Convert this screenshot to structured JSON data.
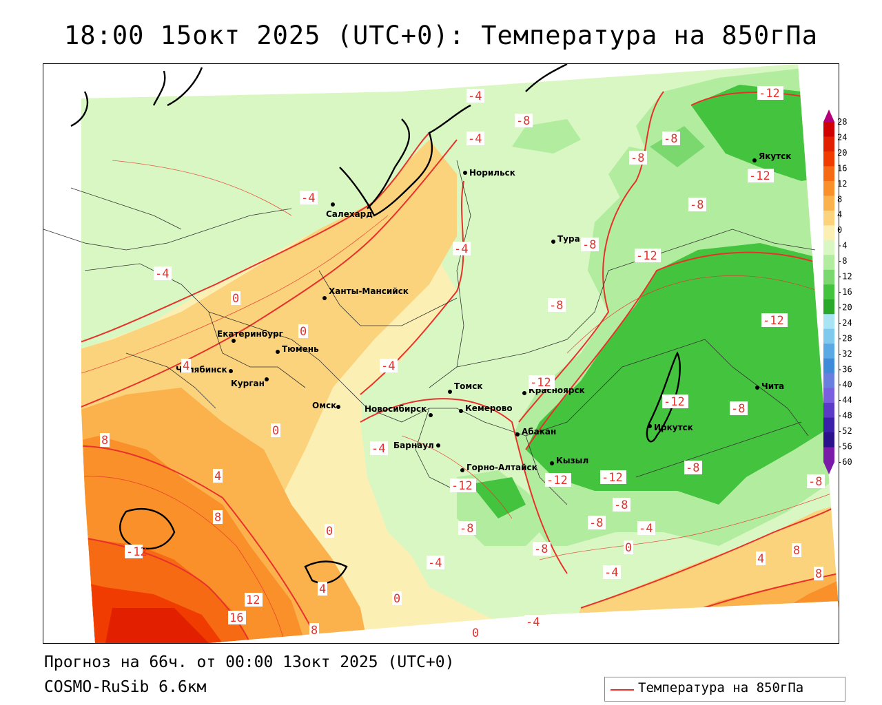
{
  "title": "18:00 15окт 2025 (UTC+0): Температура на 850гПа",
  "footer": {
    "forecast": "Прогноз на 66ч. от 00:00 13окт 2025 (UTC+0)",
    "model": "COSMO-RuSib 6.6км"
  },
  "legend": {
    "label": "Температура на 850гПа",
    "line_color": "#e8312a"
  },
  "colorbar": {
    "ticks": [
      "28",
      "24",
      "20",
      "16",
      "12",
      "8",
      "4",
      "0",
      "-4",
      "-8",
      "-12",
      "-16",
      "-20",
      "-24",
      "-28",
      "-32",
      "-36",
      "-40",
      "-44",
      "-48",
      "-52",
      "-56",
      "-60"
    ],
    "colors": [
      "#b3007a",
      "#d10000",
      "#e22000",
      "#f03c00",
      "#f76a14",
      "#f9902a",
      "#fbb24d",
      "#fad37c",
      "#fcefb3",
      "#d8f7c2",
      "#b2ec9f",
      "#7ad86f",
      "#44c33e",
      "#2aa82a",
      "#a8e4f4",
      "#7fc8ee",
      "#5aa8e4",
      "#3f8ad9",
      "#6a7ee0",
      "#7a5ee0",
      "#5c3ac8",
      "#3a20a8",
      "#2a108a",
      "#7a1aa8"
    ]
  },
  "cities": [
    {
      "name": "Салехард"
    },
    {
      "name": "Норильск"
    },
    {
      "name": "Якутск"
    },
    {
      "name": "Тура"
    },
    {
      "name": "Ханты-Мансийск"
    },
    {
      "name": "Екатеринбург"
    },
    {
      "name": "Тюмень"
    },
    {
      "name": "Челябинск"
    },
    {
      "name": "Курган"
    },
    {
      "name": "Омск"
    },
    {
      "name": "Томск"
    },
    {
      "name": "Новосибирск"
    },
    {
      "name": "Кемерово"
    },
    {
      "name": "Красноярск"
    },
    {
      "name": "Барнаул"
    },
    {
      "name": "Абакан"
    },
    {
      "name": "Горно-Алтайск"
    },
    {
      "name": "Кызыл"
    },
    {
      "name": "Иркутск"
    },
    {
      "name": "Чита"
    }
  ],
  "contour_labels": [
    "-4",
    "-8",
    "-12",
    "0",
    "4",
    "8",
    "12",
    "16"
  ]
}
